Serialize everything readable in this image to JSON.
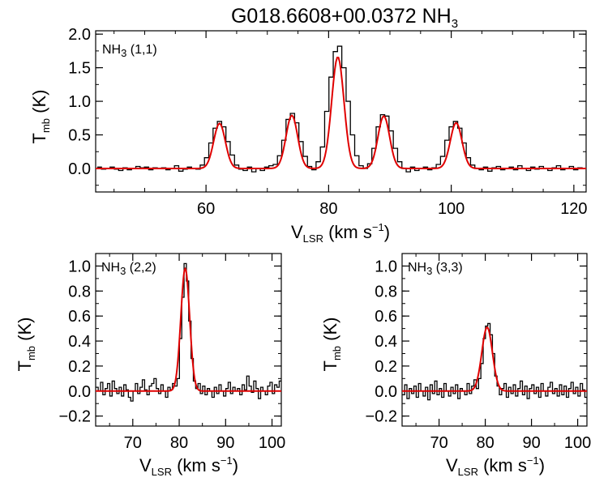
{
  "figure": {
    "title_main": "G018.6608+00.0372 NH",
    "title_sub": "3"
  },
  "colors": {
    "data": "#000000",
    "fit": "#e00000"
  },
  "chart_data": [
    {
      "type": "line",
      "panel": "NH3 (1,1)",
      "label_main": "NH",
      "label_sub": "3",
      "label_rest": " (1,1)",
      "xlabel": {
        "main": "V",
        "sub": "LSR",
        "rest": " (km s",
        "sup": "−1",
        "close": ")"
      },
      "ylabel": {
        "main": "T",
        "sub": "mb",
        "rest": " (K)"
      },
      "xlim": [
        42,
        122
      ],
      "ylim": [
        -0.35,
        2.05
      ],
      "xticks": [
        60,
        80,
        100,
        120
      ],
      "yticks": [
        0.0,
        0.5,
        1.0,
        1.5,
        2.0
      ],
      "ytick_labels": [
        "0.0",
        "0.5",
        "1.0",
        "1.5",
        "2.0"
      ],
      "series": [],
      "fit_components": [
        {
          "center": 62.2,
          "amplitude": 0.67,
          "sigma": 0.95
        },
        {
          "center": 74.0,
          "amplitude": 0.79,
          "sigma": 0.95
        },
        {
          "center": 81.5,
          "amplitude": 1.66,
          "sigma": 1.0
        },
        {
          "center": 89.0,
          "amplitude": 0.78,
          "sigma": 0.95
        },
        {
          "center": 100.8,
          "amplitude": 0.68,
          "sigma": 0.95
        }
      ],
      "data_points": [
        [
          42.6,
          0.02
        ],
        [
          43.3,
          -0.01
        ],
        [
          44.0,
          0.0
        ],
        [
          44.7,
          0.02
        ],
        [
          45.4,
          -0.01
        ],
        [
          46.1,
          -0.03
        ],
        [
          46.8,
          0.01
        ],
        [
          47.5,
          -0.02
        ],
        [
          48.2,
          0.0
        ],
        [
          48.9,
          0.03
        ],
        [
          49.6,
          0.01
        ],
        [
          50.3,
          0.02
        ],
        [
          51.0,
          -0.02
        ],
        [
          51.7,
          0.01
        ],
        [
          52.4,
          0.0
        ],
        [
          53.1,
          0.01
        ],
        [
          53.8,
          -0.02
        ],
        [
          54.5,
          0.0
        ],
        [
          55.2,
          0.04
        ],
        [
          55.9,
          -0.04
        ],
        [
          56.6,
          -0.01
        ],
        [
          57.3,
          0.02
        ],
        [
          58.0,
          0.0
        ],
        [
          58.7,
          -0.01
        ],
        [
          59.4,
          0.05
        ],
        [
          60.1,
          0.16
        ],
        [
          60.8,
          0.38
        ],
        [
          61.5,
          0.6
        ],
        [
          62.2,
          0.7
        ],
        [
          62.9,
          0.62
        ],
        [
          63.6,
          0.4
        ],
        [
          64.3,
          0.2
        ],
        [
          65.0,
          0.05
        ],
        [
          65.7,
          -0.01
        ],
        [
          66.4,
          -0.03
        ],
        [
          67.1,
          0.02
        ],
        [
          67.8,
          -0.05
        ],
        [
          68.5,
          0.0
        ],
        [
          69.2,
          -0.03
        ],
        [
          69.9,
          0.02
        ],
        [
          70.6,
          0.04
        ],
        [
          71.3,
          0.06
        ],
        [
          72.0,
          0.19
        ],
        [
          72.7,
          0.42
        ],
        [
          73.4,
          0.73
        ],
        [
          74.1,
          0.82
        ],
        [
          74.8,
          0.68
        ],
        [
          75.5,
          0.4
        ],
        [
          76.2,
          0.18
        ],
        [
          76.9,
          0.03
        ],
        [
          77.6,
          -0.02
        ],
        [
          78.3,
          0.1
        ],
        [
          79.0,
          0.32
        ],
        [
          79.7,
          0.85
        ],
        [
          80.4,
          1.36
        ],
        [
          81.1,
          1.74
        ],
        [
          81.8,
          1.82
        ],
        [
          82.5,
          1.5
        ],
        [
          83.2,
          1.0
        ],
        [
          83.9,
          0.5
        ],
        [
          84.6,
          0.19
        ],
        [
          85.3,
          0.04
        ],
        [
          86.0,
          0.0
        ],
        [
          86.7,
          0.07
        ],
        [
          87.4,
          0.3
        ],
        [
          88.1,
          0.62
        ],
        [
          88.8,
          0.8
        ],
        [
          89.5,
          0.78
        ],
        [
          90.2,
          0.56
        ],
        [
          90.9,
          0.3
        ],
        [
          91.6,
          0.1
        ],
        [
          92.3,
          0.0
        ],
        [
          93.0,
          -0.05
        ],
        [
          93.7,
          0.02
        ],
        [
          94.4,
          -0.03
        ],
        [
          95.1,
          0.0
        ],
        [
          95.8,
          0.02
        ],
        [
          96.5,
          -0.02
        ],
        [
          97.2,
          0.01
        ],
        [
          97.9,
          0.06
        ],
        [
          98.6,
          0.18
        ],
        [
          99.3,
          0.42
        ],
        [
          100.0,
          0.62
        ],
        [
          100.7,
          0.7
        ],
        [
          101.4,
          0.6
        ],
        [
          102.1,
          0.38
        ],
        [
          102.8,
          0.16
        ],
        [
          103.5,
          0.05
        ],
        [
          104.2,
          0.0
        ],
        [
          104.9,
          -0.02
        ],
        [
          105.6,
          0.02
        ],
        [
          106.3,
          -0.04
        ],
        [
          107.0,
          0.01
        ],
        [
          107.7,
          0.03
        ],
        [
          108.4,
          -0.02
        ],
        [
          109.1,
          0.0
        ],
        [
          109.8,
          0.02
        ],
        [
          110.5,
          -0.02
        ],
        [
          111.2,
          0.04
        ],
        [
          111.9,
          0.0
        ],
        [
          112.6,
          -0.03
        ],
        [
          113.3,
          0.02
        ],
        [
          114.0,
          -0.01
        ],
        [
          114.7,
          0.03
        ],
        [
          115.4,
          0.0
        ],
        [
          116.1,
          -0.03
        ],
        [
          116.8,
          0.01
        ],
        [
          117.5,
          0.04
        ],
        [
          118.2,
          -0.02
        ],
        [
          118.9,
          0.0
        ],
        [
          119.6,
          0.03
        ],
        [
          120.3,
          -0.02
        ],
        [
          121.0,
          0.01
        ],
        [
          121.7,
          0.0
        ]
      ]
    },
    {
      "type": "line",
      "panel": "NH3 (2,2)",
      "label_main": "NH",
      "label_sub": "3",
      "label_rest": " (2,2)",
      "xlabel": {
        "main": "V",
        "sub": "LSR",
        "rest": " (km s",
        "sup": "−1",
        "close": ")"
      },
      "ylabel": {
        "main": "T",
        "sub": "mb",
        "rest": " (K)"
      },
      "xlim": [
        62,
        102
      ],
      "ylim": [
        -0.28,
        1.1
      ],
      "xticks": [
        70,
        80,
        90,
        100
      ],
      "yticks": [
        -0.2,
        0.0,
        0.2,
        0.4,
        0.6,
        0.8,
        1.0
      ],
      "ytick_labels": [
        "−0.2",
        "0.0",
        "0.2",
        "0.4",
        "0.6",
        "0.8",
        "1.0"
      ],
      "series": [],
      "fit_components": [
        {
          "center": 81.3,
          "amplitude": 0.98,
          "sigma": 0.95
        }
      ],
      "data_points": [
        [
          62.3,
          0.03
        ],
        [
          62.8,
          0.0
        ],
        [
          63.3,
          0.07
        ],
        [
          63.8,
          -0.03
        ],
        [
          64.3,
          0.02
        ],
        [
          64.8,
          0.06
        ],
        [
          65.3,
          -0.04
        ],
        [
          65.8,
          0.08
        ],
        [
          66.3,
          0.02
        ],
        [
          66.8,
          -0.02
        ],
        [
          67.3,
          0.03
        ],
        [
          67.8,
          -0.04
        ],
        [
          68.3,
          0.05
        ],
        [
          68.8,
          0.01
        ],
        [
          69.3,
          -0.05
        ],
        [
          69.8,
          -0.08
        ],
        [
          70.3,
          0.0
        ],
        [
          70.8,
          0.06
        ],
        [
          71.3,
          -0.02
        ],
        [
          71.8,
          0.03
        ],
        [
          72.3,
          0.09
        ],
        [
          72.8,
          0.01
        ],
        [
          73.3,
          -0.03
        ],
        [
          73.8,
          0.04
        ],
        [
          74.3,
          0.06
        ],
        [
          74.8,
          0.1
        ],
        [
          75.3,
          0.02
        ],
        [
          75.8,
          -0.02
        ],
        [
          76.3,
          0.05
        ],
        [
          76.8,
          0.0
        ],
        [
          77.3,
          -0.05
        ],
        [
          77.8,
          0.03
        ],
        [
          78.3,
          0.01
        ],
        [
          78.8,
          0.06
        ],
        [
          79.3,
          0.04
        ],
        [
          79.8,
          0.1
        ],
        [
          80.3,
          0.42
        ],
        [
          80.8,
          0.75
        ],
        [
          81.3,
          1.02
        ],
        [
          81.8,
          0.88
        ],
        [
          82.3,
          0.56
        ],
        [
          82.8,
          0.26
        ],
        [
          83.3,
          0.08
        ],
        [
          83.8,
          0.02
        ],
        [
          84.3,
          0.06
        ],
        [
          84.8,
          -0.02
        ],
        [
          85.3,
          0.04
        ],
        [
          85.8,
          -0.03
        ],
        [
          86.3,
          0.02
        ],
        [
          86.8,
          0.0
        ],
        [
          87.3,
          -0.05
        ],
        [
          87.8,
          0.03
        ],
        [
          88.3,
          -0.02
        ],
        [
          88.8,
          0.05
        ],
        [
          89.3,
          0.0
        ],
        [
          89.8,
          -0.04
        ],
        [
          90.3,
          0.02
        ],
        [
          90.8,
          0.07
        ],
        [
          91.3,
          -0.02
        ],
        [
          91.8,
          0.03
        ],
        [
          92.3,
          0.0
        ],
        [
          92.8,
          0.02
        ],
        [
          93.3,
          -0.03
        ],
        [
          93.8,
          0.05
        ],
        [
          94.3,
          0.01
        ],
        [
          94.8,
          0.12
        ],
        [
          95.3,
          0.04
        ],
        [
          95.8,
          -0.01
        ],
        [
          96.3,
          0.08
        ],
        [
          96.8,
          0.02
        ],
        [
          97.3,
          -0.06
        ],
        [
          97.8,
          0.03
        ],
        [
          98.3,
          0.0
        ],
        [
          98.8,
          -0.03
        ],
        [
          99.3,
          0.04
        ],
        [
          99.8,
          0.07
        ],
        [
          100.3,
          -0.02
        ],
        [
          100.8,
          0.05
        ],
        [
          101.3,
          0.03
        ],
        [
          101.8,
          0.08
        ]
      ]
    },
    {
      "type": "line",
      "panel": "NH3 (3,3)",
      "label_main": "NH",
      "label_sub": "3",
      "label_rest": " (3,3)",
      "xlabel": {
        "main": "V",
        "sub": "LSR",
        "rest": " (km s",
        "sup": "−1",
        "close": ")"
      },
      "ylabel": {
        "main": "T",
        "sub": "mb",
        "rest": " (K)"
      },
      "xlim": [
        62,
        102
      ],
      "ylim": [
        -0.28,
        1.1
      ],
      "xticks": [
        70,
        80,
        90,
        100
      ],
      "yticks": [
        -0.2,
        0.0,
        0.2,
        0.4,
        0.6,
        0.8,
        1.0
      ],
      "ytick_labels": [
        "−0.2",
        "0.0",
        "0.2",
        "0.4",
        "0.6",
        "0.8",
        "1.0"
      ],
      "series": [],
      "fit_components": [
        {
          "center": 80.4,
          "amplitude": 0.51,
          "sigma": 1.15
        }
      ],
      "data_points": [
        [
          62.3,
          -0.03
        ],
        [
          62.8,
          0.05
        ],
        [
          63.3,
          -0.06
        ],
        [
          63.8,
          0.02
        ],
        [
          64.3,
          -0.02
        ],
        [
          64.8,
          0.04
        ],
        [
          65.3,
          -0.05
        ],
        [
          65.8,
          0.06
        ],
        [
          66.3,
          0.0
        ],
        [
          66.8,
          -0.04
        ],
        [
          67.3,
          0.03
        ],
        [
          67.8,
          -0.07
        ],
        [
          68.3,
          0.05
        ],
        [
          68.8,
          -0.02
        ],
        [
          69.3,
          0.08
        ],
        [
          69.8,
          -0.03
        ],
        [
          70.3,
          0.02
        ],
        [
          70.8,
          -0.05
        ],
        [
          71.3,
          0.06
        ],
        [
          71.8,
          0.0
        ],
        [
          72.3,
          -0.04
        ],
        [
          72.8,
          0.03
        ],
        [
          73.3,
          -0.02
        ],
        [
          73.8,
          0.05
        ],
        [
          74.3,
          -0.06
        ],
        [
          74.8,
          0.02
        ],
        [
          75.3,
          0.0
        ],
        [
          75.8,
          -0.03
        ],
        [
          76.3,
          0.06
        ],
        [
          76.8,
          -0.02
        ],
        [
          77.3,
          0.04
        ],
        [
          77.8,
          0.09
        ],
        [
          78.3,
          0.02
        ],
        [
          78.8,
          0.1
        ],
        [
          79.3,
          0.22
        ],
        [
          79.8,
          0.42
        ],
        [
          80.3,
          0.52
        ],
        [
          80.8,
          0.54
        ],
        [
          81.3,
          0.45
        ],
        [
          81.8,
          0.3
        ],
        [
          82.3,
          0.12
        ],
        [
          82.8,
          0.04
        ],
        [
          83.3,
          -0.03
        ],
        [
          83.8,
          0.02
        ],
        [
          84.3,
          0.06
        ],
        [
          84.8,
          -0.05
        ],
        [
          85.3,
          0.03
        ],
        [
          85.8,
          -0.02
        ],
        [
          86.3,
          0.05
        ],
        [
          86.8,
          -0.04
        ],
        [
          87.3,
          0.02
        ],
        [
          87.8,
          0.08
        ],
        [
          88.3,
          -0.03
        ],
        [
          88.8,
          0.04
        ],
        [
          89.3,
          -0.06
        ],
        [
          89.8,
          0.02
        ],
        [
          90.3,
          0.05
        ],
        [
          90.8,
          -0.02
        ],
        [
          91.3,
          0.03
        ],
        [
          91.8,
          -0.05
        ],
        [
          92.3,
          0.06
        ],
        [
          92.8,
          0.0
        ],
        [
          93.3,
          -0.04
        ],
        [
          93.8,
          0.03
        ],
        [
          94.3,
          0.07
        ],
        [
          94.8,
          -0.02
        ],
        [
          95.3,
          0.02
        ],
        [
          95.8,
          -0.04
        ],
        [
          96.3,
          0.05
        ],
        [
          96.8,
          -0.03
        ],
        [
          97.3,
          0.04
        ],
        [
          97.8,
          -0.05
        ],
        [
          98.3,
          0.02
        ],
        [
          98.8,
          0.07
        ],
        [
          99.3,
          -0.02
        ],
        [
          99.8,
          0.03
        ],
        [
          100.3,
          -0.04
        ],
        [
          100.8,
          0.06
        ],
        [
          101.3,
          0.01
        ],
        [
          101.8,
          -0.05
        ]
      ]
    }
  ]
}
